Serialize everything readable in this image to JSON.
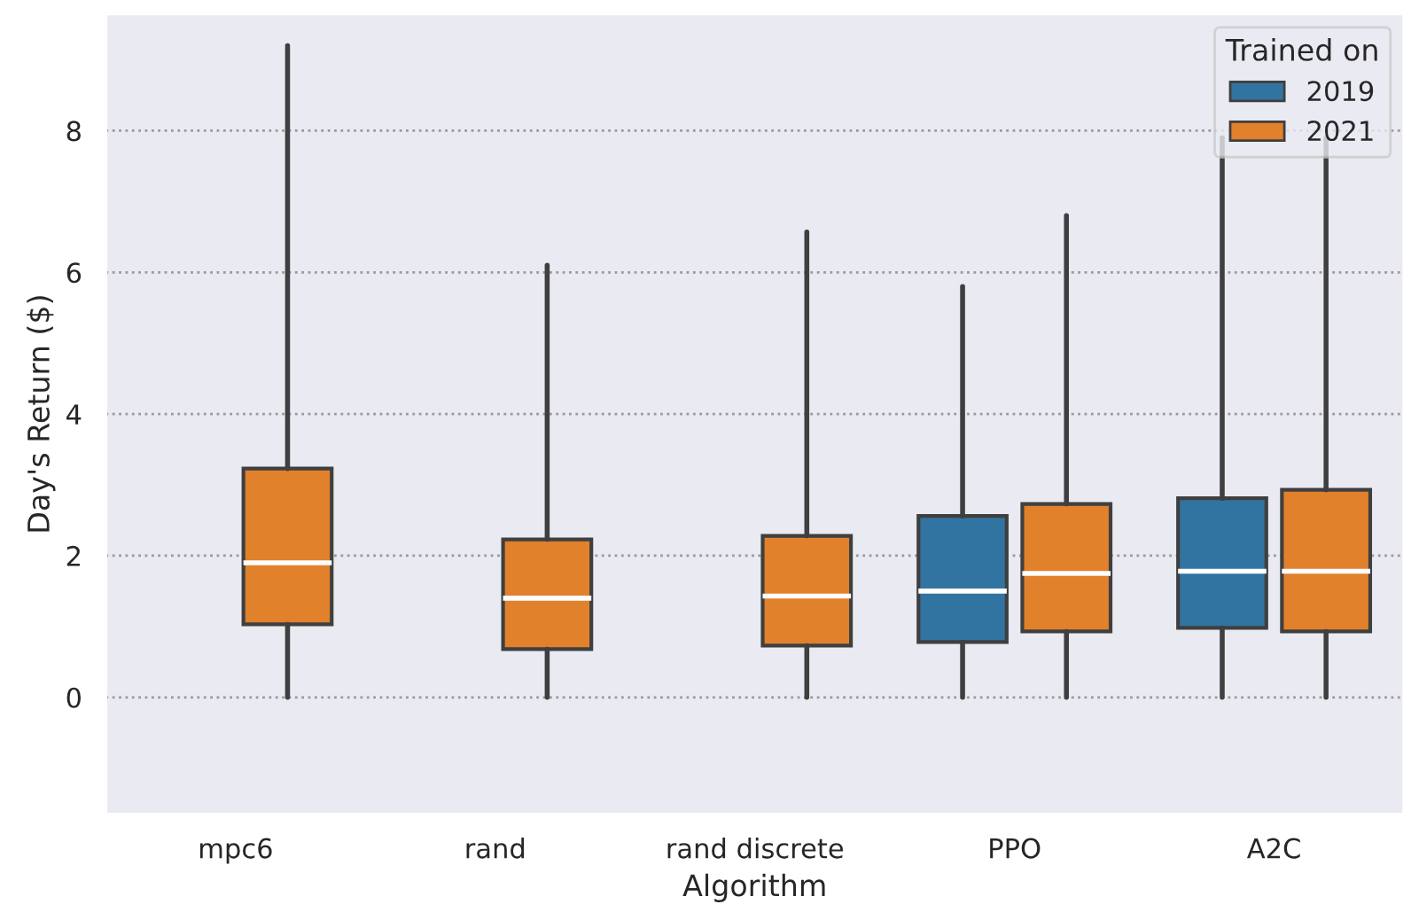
{
  "chart_data": {
    "type": "box",
    "xlabel": "Algorithm",
    "ylabel": "Day's Return ($)",
    "legend_title": "Trained on",
    "categories": [
      "mpc6",
      "rand",
      "rand discrete",
      "PPO",
      "A2C"
    ],
    "series": [
      {
        "name": "2019",
        "color": "#3274a1",
        "boxes": [
          null,
          null,
          null,
          {
            "low": 0,
            "q1": 0.78,
            "median": 1.5,
            "q3": 2.56,
            "high": 5.8
          },
          {
            "low": 0,
            "q1": 0.98,
            "median": 1.78,
            "q3": 2.81,
            "high": 7.9
          }
        ]
      },
      {
        "name": "2021",
        "color": "#e1812c",
        "boxes": [
          {
            "low": 0,
            "q1": 1.03,
            "median": 1.9,
            "q3": 3.23,
            "high": 9.2
          },
          {
            "low": 0,
            "q1": 0.68,
            "median": 1.4,
            "q3": 2.23,
            "high": 6.1
          },
          {
            "low": 0,
            "q1": 0.73,
            "median": 1.43,
            "q3": 2.28,
            "high": 6.57
          },
          {
            "low": 0,
            "q1": 0.93,
            "median": 1.75,
            "q3": 2.73,
            "high": 6.8
          },
          {
            "low": 0,
            "q1": 0.93,
            "median": 1.78,
            "q3": 2.93,
            "high": 7.9
          }
        ]
      }
    ],
    "ylim": [
      -1.65,
      9.65
    ],
    "yticks": [
      0,
      2,
      4,
      6,
      8
    ],
    "grid": "y",
    "legend": "top right"
  }
}
